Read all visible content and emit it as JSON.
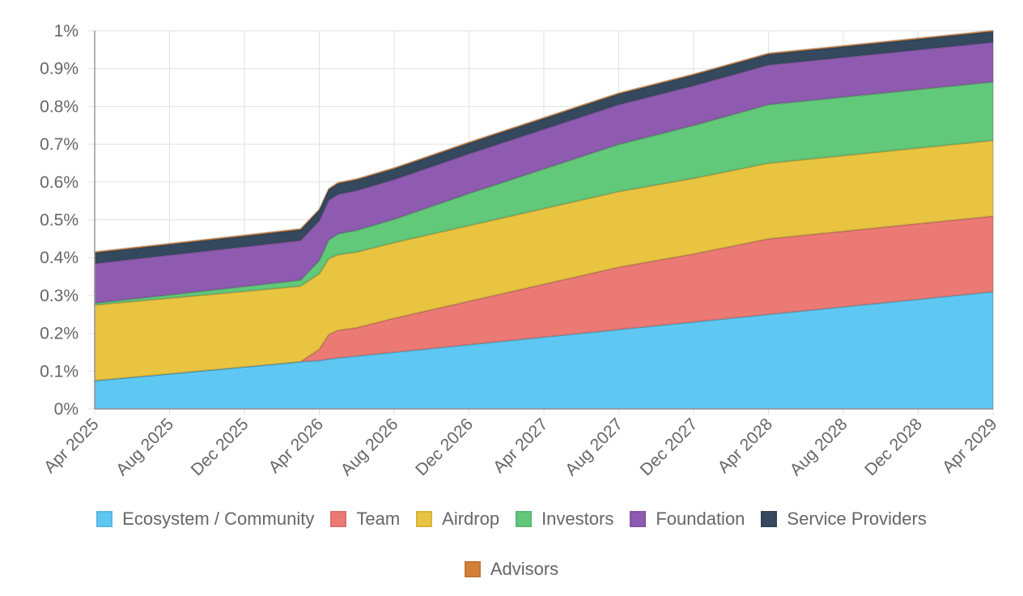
{
  "chart_data": {
    "type": "area",
    "stacked": true,
    "title": "",
    "xlabel": "",
    "ylabel": "",
    "ylim": [
      0,
      1
    ],
    "y_ticks": [
      "0%",
      "0.1%",
      "0.2%",
      "0.3%",
      "0.4%",
      "0.5%",
      "0.6%",
      "0.7%",
      "0.8%",
      "0.9%",
      "1%"
    ],
    "x_ticks": [
      "Apr 2025",
      "Aug 2025",
      "Dec 2025",
      "Apr 2026",
      "Aug 2026",
      "Dec 2026",
      "Apr 2027",
      "Aug 2027",
      "Dec 2027",
      "Apr 2028",
      "Aug 2028",
      "Dec 2028",
      "Apr 2029"
    ],
    "x": [
      0,
      4,
      8,
      11,
      12,
      12.5,
      13,
      14,
      16,
      20,
      24,
      28,
      32,
      36,
      40,
      44,
      48
    ],
    "x_unit": "months since Apr 2025",
    "grid": true,
    "legend_position": "bottom",
    "series": [
      {
        "name": "Ecosystem / Community",
        "color": "#5ec8f2",
        "values": [
          0.075,
          0.093,
          0.111,
          0.125,
          0.128,
          0.132,
          0.135,
          0.14,
          0.15,
          0.17,
          0.19,
          0.21,
          0.23,
          0.25,
          0.27,
          0.29,
          0.31
        ]
      },
      {
        "name": "Team",
        "color": "#ec7a74",
        "values": [
          0,
          0,
          0,
          0,
          0.03,
          0.065,
          0.073,
          0.075,
          0.09,
          0.115,
          0.14,
          0.165,
          0.18,
          0.2,
          0.2,
          0.2,
          0.2
        ]
      },
      {
        "name": "Airdrop",
        "color": "#e8c441",
        "values": [
          0.2,
          0.2,
          0.2,
          0.2,
          0.2,
          0.2,
          0.2,
          0.2,
          0.2,
          0.2,
          0.2,
          0.2,
          0.2,
          0.2,
          0.2,
          0.2,
          0.2
        ]
      },
      {
        "name": "Investors",
        "color": "#62c87a",
        "values": [
          0.005,
          0.009,
          0.013,
          0.016,
          0.035,
          0.05,
          0.055,
          0.058,
          0.062,
          0.085,
          0.105,
          0.125,
          0.14,
          0.155,
          0.155,
          0.155,
          0.155
        ]
      },
      {
        "name": "Foundation",
        "color": "#8e5bb0",
        "values": [
          0.105,
          0.105,
          0.105,
          0.105,
          0.105,
          0.105,
          0.105,
          0.105,
          0.105,
          0.105,
          0.105,
          0.105,
          0.105,
          0.105,
          0.105,
          0.105,
          0.105
        ]
      },
      {
        "name": "Service Providers",
        "color": "#34495e",
        "values": [
          0.028,
          0.028,
          0.028,
          0.028,
          0.028,
          0.028,
          0.028,
          0.028,
          0.028,
          0.028,
          0.028,
          0.028,
          0.028,
          0.028,
          0.028,
          0.028,
          0.028
        ]
      },
      {
        "name": "Advisors",
        "color": "#d2803a",
        "values": [
          0.003,
          0.003,
          0.003,
          0.003,
          0.003,
          0.003,
          0.003,
          0.003,
          0.003,
          0.003,
          0.003,
          0.003,
          0.003,
          0.003,
          0.003,
          0.003,
          0.003
        ]
      }
    ]
  }
}
